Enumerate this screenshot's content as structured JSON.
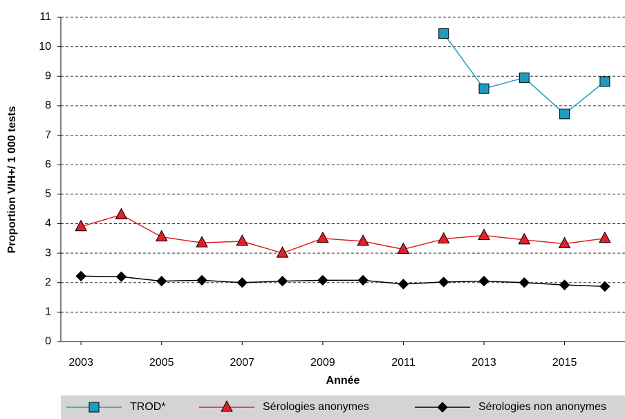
{
  "chart_data": {
    "type": "line",
    "y_label": "Proportion VIH+/ 1 000 tests",
    "x_label": "Année",
    "x": [
      2003,
      2004,
      2005,
      2006,
      2007,
      2008,
      2009,
      2010,
      2011,
      2012,
      2013,
      2014,
      2015,
      2016
    ],
    "xlim": [
      2002.5,
      2016.5
    ],
    "xticks": [
      2003,
      2005,
      2007,
      2009,
      2011,
      2013,
      2015
    ],
    "ylim": [
      0,
      11
    ],
    "yticks": [
      0,
      1,
      2,
      3,
      4,
      5,
      6,
      7,
      8,
      9,
      10,
      11
    ],
    "grid": true,
    "legend": "bottom",
    "series": [
      {
        "name": "TROD*",
        "color": "#1d9cc0",
        "marker": "square",
        "values": [
          null,
          null,
          null,
          null,
          null,
          null,
          null,
          null,
          null,
          10.45,
          8.58,
          8.95,
          7.72,
          8.82
        ]
      },
      {
        "name": "Sérologies anonymes",
        "color": "#e3202a",
        "marker": "triangle",
        "values": [
          3.9,
          4.3,
          3.55,
          3.35,
          3.4,
          3.0,
          3.5,
          3.4,
          3.13,
          3.48,
          3.6,
          3.45,
          3.32,
          3.5
        ]
      },
      {
        "name": "Sérologies non anonymes",
        "color": "#000000",
        "marker": "diamond",
        "values": [
          2.22,
          2.2,
          2.05,
          2.08,
          2.0,
          2.05,
          2.08,
          2.08,
          1.95,
          2.02,
          2.05,
          2.0,
          1.92,
          1.87
        ]
      }
    ]
  }
}
